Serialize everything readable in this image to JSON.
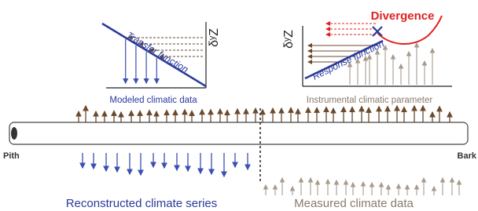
{
  "left_panel": {
    "curve_label": "Transfer function",
    "axis_label": "δʸZ",
    "caption": "Modeled climatic data"
  },
  "right_panel": {
    "curve_label": "Response function",
    "axis_label": "δʸZ",
    "caption": "Instrumental climatic parameter",
    "divergence_label": "Divergence"
  },
  "trunk": {
    "pith_label": "Pith",
    "bark_label": "Bark"
  },
  "bottom": {
    "left_caption": "Reconstructed climate series",
    "right_caption": "Measured climate data"
  }
}
